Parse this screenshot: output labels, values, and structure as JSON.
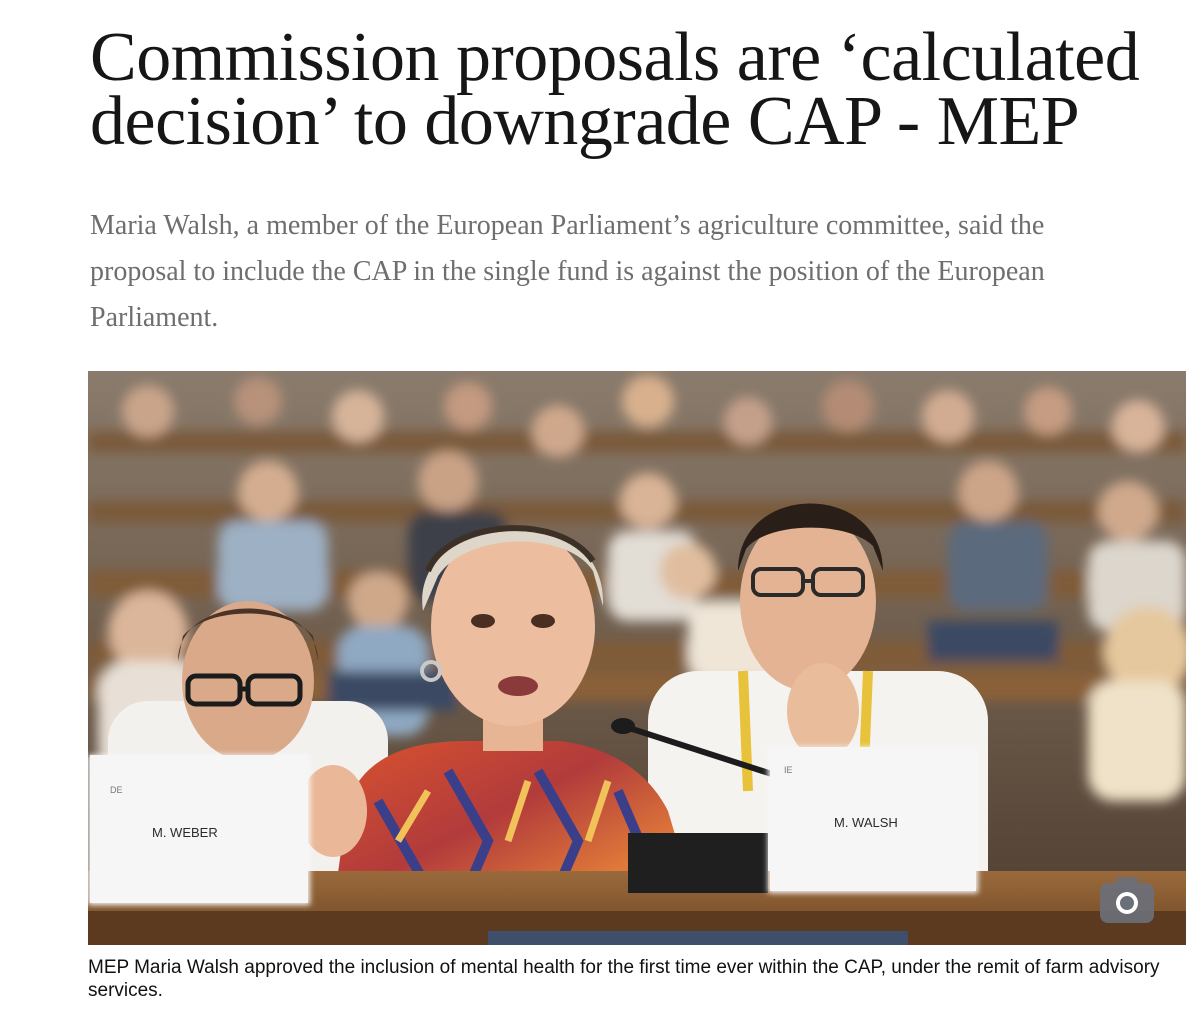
{
  "article": {
    "headline": "Commission proposals are ‘calculated decision’ to downgrade CAP - MEP",
    "standfirst": "Maria Walsh, a member of the European Parliament’s agriculture committee, said the proposal to include the CAP in the single fund is against the position of the European Parliament.",
    "photo": {
      "nameplate_left_country": "DE",
      "nameplate_left_name": "M. WEBER",
      "nameplate_right_country": "IE",
      "nameplate_right_name": "M. WALSH",
      "camera_icon": "camera-icon"
    },
    "caption": "MEP Maria Walsh approved the inclusion of mental health for the first time ever within the CAP, under the remit of farm advisory services."
  }
}
